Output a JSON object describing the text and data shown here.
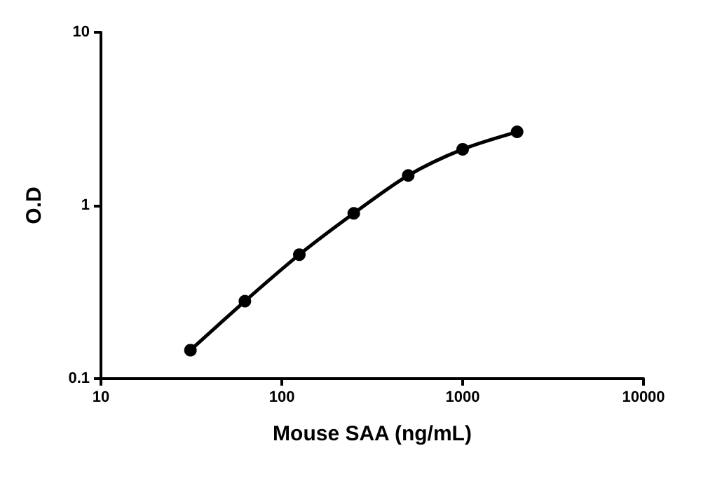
{
  "chart_data": {
    "type": "line",
    "xlabel": "Mouse SAA (ng/mL)",
    "ylabel": "O.D",
    "x": [
      31.25,
      62.5,
      125,
      250,
      500,
      1000,
      2000
    ],
    "series": [
      {
        "color": "#000000",
        "values": [
          0.146,
          0.28,
          0.52,
          0.9,
          1.49,
          2.11,
          2.66
        ]
      }
    ],
    "xlim": [
      10,
      10000
    ],
    "xticks": [
      10,
      100,
      1000,
      10000
    ],
    "ylim": [
      0.1,
      10
    ],
    "yticks": [
      0.1,
      1,
      10
    ],
    "log": "xy",
    "grid": false,
    "marker": "circle",
    "line_style": "solid"
  }
}
